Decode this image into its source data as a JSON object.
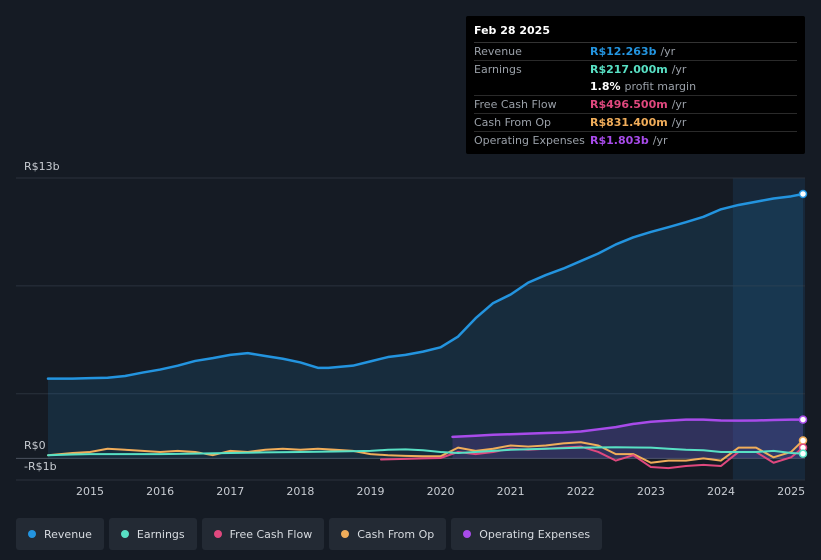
{
  "tooltip": {
    "date": "Feb 28 2025",
    "rows": [
      {
        "label": "Revenue",
        "value": "R$12.263b",
        "unit": "/yr",
        "color": "#2394df"
      },
      {
        "label": "Earnings",
        "value": "R$217.000m",
        "unit": "/yr",
        "color": "#58e0c4"
      },
      {
        "label": "",
        "value": "1.8%",
        "unit": "profit margin",
        "color": "#ffffff"
      },
      {
        "label": "Free Cash Flow",
        "value": "R$496.500m",
        "unit": "/yr",
        "color": "#e0487e"
      },
      {
        "label": "Cash From Op",
        "value": "R$831.400m",
        "unit": "/yr",
        "color": "#f0ad5a"
      },
      {
        "label": "Operating Expenses",
        "value": "R$1.803b",
        "unit": "/yr",
        "color": "#a84bea"
      }
    ]
  },
  "legend": [
    {
      "label": "Revenue",
      "color": "#2394df"
    },
    {
      "label": "Earnings",
      "color": "#58e0c4"
    },
    {
      "label": "Free Cash Flow",
      "color": "#e0487e"
    },
    {
      "label": "Cash From Op",
      "color": "#f0ad5a"
    },
    {
      "label": "Operating Expenses",
      "color": "#a84bea"
    }
  ],
  "chart_data": {
    "type": "line",
    "title": "",
    "xlabel": "",
    "ylabel": "",
    "y_labels": {
      "top": "R$13b",
      "zero": "R$0",
      "bottom": "-R$1b"
    },
    "ylim": [
      -1,
      13
    ],
    "xlim": [
      2014.4,
      2025.17
    ],
    "x_ticks": [
      2015,
      2016,
      2017,
      2018,
      2019,
      2020,
      2021,
      2022,
      2023,
      2024,
      2025
    ],
    "highlight_start": 2024.17,
    "series": [
      {
        "name": "Revenue",
        "color": "#2394df",
        "fill": true,
        "x": [
          2014.4,
          2014.75,
          2015.0,
          2015.25,
          2015.5,
          2015.75,
          2016.0,
          2016.25,
          2016.5,
          2016.75,
          2017.0,
          2017.25,
          2017.5,
          2017.75,
          2018.0,
          2018.25,
          2018.4,
          2018.75,
          2019.0,
          2019.25,
          2019.5,
          2019.75,
          2020.0,
          2020.25,
          2020.5,
          2020.75,
          2021.0,
          2021.25,
          2021.5,
          2021.75,
          2022.0,
          2022.25,
          2022.5,
          2022.75,
          2023.0,
          2023.25,
          2023.5,
          2023.75,
          2024.0,
          2024.25,
          2024.5,
          2024.75,
          2025.0,
          2025.17
        ],
        "values": [
          3.7,
          3.7,
          3.72,
          3.74,
          3.82,
          3.98,
          4.12,
          4.3,
          4.52,
          4.65,
          4.8,
          4.88,
          4.75,
          4.62,
          4.45,
          4.2,
          4.2,
          4.3,
          4.5,
          4.7,
          4.8,
          4.95,
          5.15,
          5.65,
          6.5,
          7.2,
          7.6,
          8.15,
          8.5,
          8.8,
          9.15,
          9.5,
          9.92,
          10.25,
          10.5,
          10.72,
          10.95,
          11.2,
          11.55,
          11.75,
          11.9,
          12.05,
          12.15,
          12.26
        ]
      },
      {
        "name": "Operating Expenses",
        "color": "#a84bea",
        "fill": true,
        "x": [
          2020.17,
          2020.5,
          2020.75,
          2021.0,
          2021.25,
          2021.5,
          2021.75,
          2022.0,
          2022.25,
          2022.5,
          2022.75,
          2023.0,
          2023.25,
          2023.5,
          2023.75,
          2024.0,
          2024.25,
          2024.5,
          2024.75,
          2025.0,
          2025.17
        ],
        "values": [
          1.0,
          1.05,
          1.1,
          1.12,
          1.15,
          1.18,
          1.2,
          1.25,
          1.35,
          1.45,
          1.6,
          1.7,
          1.75,
          1.8,
          1.8,
          1.76,
          1.75,
          1.76,
          1.78,
          1.8,
          1.8
        ]
      },
      {
        "name": "Cash From Op",
        "color": "#f0ad5a",
        "fill": false,
        "x": [
          2014.4,
          2014.75,
          2015.0,
          2015.25,
          2015.5,
          2015.75,
          2016.0,
          2016.25,
          2016.5,
          2016.75,
          2017.0,
          2017.25,
          2017.5,
          2017.75,
          2018.0,
          2018.25,
          2018.5,
          2018.75,
          2019.0,
          2019.25,
          2019.5,
          2019.75,
          2020.0,
          2020.25,
          2020.5,
          2020.75,
          2021.0,
          2021.25,
          2021.5,
          2021.75,
          2022.0,
          2022.25,
          2022.5,
          2022.75,
          2023.0,
          2023.25,
          2023.5,
          2023.75,
          2024.0,
          2024.25,
          2024.5,
          2024.75,
          2025.0,
          2025.17
        ],
        "values": [
          0.15,
          0.25,
          0.3,
          0.45,
          0.4,
          0.35,
          0.3,
          0.35,
          0.3,
          0.15,
          0.35,
          0.3,
          0.4,
          0.45,
          0.4,
          0.45,
          0.4,
          0.35,
          0.2,
          0.15,
          0.12,
          0.1,
          0.1,
          0.5,
          0.35,
          0.45,
          0.6,
          0.55,
          0.6,
          0.7,
          0.75,
          0.6,
          0.2,
          0.2,
          -0.2,
          -0.1,
          -0.1,
          0.0,
          -0.1,
          0.5,
          0.5,
          0.05,
          0.3,
          0.83
        ]
      },
      {
        "name": "Free Cash Flow",
        "color": "#e0487e",
        "fill": false,
        "x": [
          2019.15,
          2019.5,
          2019.75,
          2020.0,
          2020.25,
          2020.5,
          2020.75,
          2021.0,
          2021.25,
          2021.5,
          2021.75,
          2022.0,
          2022.25,
          2022.5,
          2022.75,
          2023.0,
          2023.25,
          2023.5,
          2023.75,
          2024.0,
          2024.25,
          2024.5,
          2024.75,
          2025.0,
          2025.17
        ],
        "values": [
          -0.05,
          -0.02,
          0.0,
          0.02,
          0.3,
          0.2,
          0.3,
          0.45,
          0.4,
          0.45,
          0.5,
          0.55,
          0.3,
          -0.1,
          0.15,
          -0.4,
          -0.45,
          -0.35,
          -0.3,
          -0.35,
          0.3,
          0.3,
          -0.2,
          0.05,
          0.5
        ]
      },
      {
        "name": "Earnings",
        "color": "#58e0c4",
        "fill": false,
        "x": [
          2014.4,
          2014.75,
          2015.0,
          2015.5,
          2016.0,
          2016.5,
          2017.0,
          2017.5,
          2018.0,
          2018.5,
          2019.0,
          2019.25,
          2019.5,
          2019.75,
          2020.0,
          2020.25,
          2020.5,
          2020.75,
          2021.0,
          2021.5,
          2022.0,
          2022.5,
          2023.0,
          2023.25,
          2023.5,
          2023.75,
          2024.0,
          2024.25,
          2024.5,
          2024.75,
          2025.0,
          2025.17
        ],
        "values": [
          0.15,
          0.18,
          0.2,
          0.2,
          0.2,
          0.22,
          0.25,
          0.28,
          0.3,
          0.32,
          0.35,
          0.4,
          0.42,
          0.38,
          0.3,
          0.25,
          0.3,
          0.35,
          0.4,
          0.45,
          0.5,
          0.52,
          0.5,
          0.45,
          0.4,
          0.38,
          0.3,
          0.3,
          0.3,
          0.35,
          0.25,
          0.22
        ]
      }
    ]
  }
}
